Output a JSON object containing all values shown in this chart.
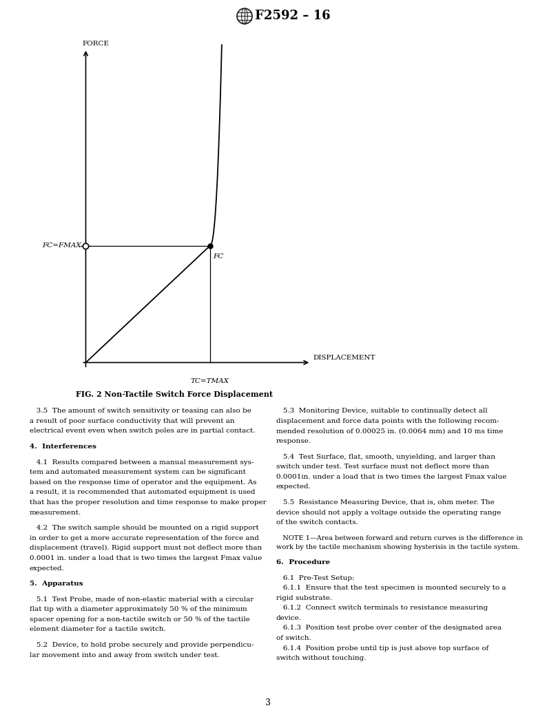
{
  "header_text": "F2592 – 16",
  "fig_caption": "FIG. 2 Non-Tactile Switch Force Displacement",
  "page_number": "3",
  "background_color": "#ffffff",
  "text_color": "#000000",
  "chart": {
    "xlabel": "DISPLACEMENT",
    "ylabel": "FORCE",
    "fc_fmax_label": "FC=FMAX",
    "fc_label": "FC",
    "tc_tmax_label": "TC=TMAX"
  },
  "left_paragraphs": [
    {
      "type": "body",
      "text": "3.5  The amount of switch sensitivity or teasing can also be a result of poor surface conductivity that will prevent an electrical event even when switch poles are in partial contact."
    },
    {
      "type": "heading",
      "number": "4.",
      "text": "  Interferences"
    },
    {
      "type": "body",
      "text": "4.1  Results compared between a manual measurement system and automated measurement system can be significant based on the response time of operator and the equipment. As a result, it is recommended that automated equipment is used that has the proper resolution and time response to make proper measurement."
    },
    {
      "type": "body",
      "text": "4.2  The switch sample should be mounted on a rigid support in order to get a more accurate representation of the force and displacement (travel). Rigid support must not deflect more than 0.0001 in. under a load that is two times the largest Fmax value expected."
    },
    {
      "type": "heading",
      "number": "5.",
      "text": "  Apparatus"
    },
    {
      "type": "body",
      "text": "5.1  Test Probe, made of non-elastic material with a circular flat tip with a diameter approximately 50 % of the minimum spacer opening for a non-tactile switch or 50 % of the tactile element diameter for a tactile switch."
    },
    {
      "type": "body",
      "text": "5.2  Device, to hold probe securely and provide perpendicular movement into and away from switch under test."
    }
  ],
  "right_paragraphs": [
    {
      "type": "body",
      "text": "5.3  Monitoring Device, suitable to continually detect all displacement and force data points with the following recommended resolution of 0.00025 in. (0.0064 mm) and 10 ms time response."
    },
    {
      "type": "body",
      "text": "5.4  Test Surface, flat, smooth, unyielding, and larger than switch under test. Test surface must not deflect more than 0.0001in. under a load that is two times the largest Fmax value expected."
    },
    {
      "type": "body",
      "text": "5.5  Resistance Measuring Device, that is, ohm meter. The device should not apply a voltage outside the operating range of the switch contacts."
    },
    {
      "type": "note",
      "text": "NOTE 1—Area between forward and return curves is the difference in work by the tactile mechanism showing hysterisis in the tactile system."
    },
    {
      "type": "heading",
      "number": "6.",
      "text": "  Procedure"
    },
    {
      "type": "body",
      "text": "6.1  Pre-Test Setup:"
    },
    {
      "type": "body",
      "text": "6.1.1  Ensure that the test specimen is mounted securely to a rigid substrate."
    },
    {
      "type": "body",
      "text": "6.1.2  Connect switch terminals to resistance measuring device."
    },
    {
      "type": "body",
      "text": "6.1.3  Position test probe over center of the designated area of switch."
    },
    {
      "type": "body",
      "text": "6.1.4  Position probe until tip is just above top surface of switch without touching."
    }
  ]
}
